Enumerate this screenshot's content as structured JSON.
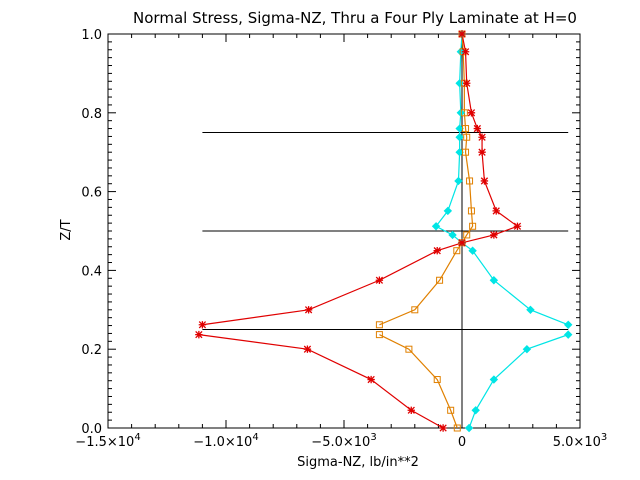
{
  "chart_data": {
    "type": "line",
    "title": "Normal Stress, Sigma-NZ, Thru a Four Ply Laminate at H=0",
    "xlabel": "Sigma-NZ,  lb/in**2",
    "ylabel": "Z/T",
    "xlim": [
      -15000,
      5000
    ],
    "ylim": [
      0.0,
      1.0
    ],
    "x_ticks": [
      {
        "value": -15000,
        "mantissa": "−1.5×10",
        "exp": "4"
      },
      {
        "value": -10000,
        "mantissa": "−1.0×10",
        "exp": "4"
      },
      {
        "value": -5000,
        "mantissa": "−5.0×10",
        "exp": "3"
      },
      {
        "value": 0,
        "mantissa": "0",
        "exp": ""
      },
      {
        "value": 5000,
        "mantissa": "5.0×10",
        "exp": "3"
      }
    ],
    "y_ticks": [
      "0.0",
      "0.2",
      "0.4",
      "0.6",
      "0.8",
      "1.0"
    ],
    "ply_interfaces": [
      0.25,
      0.5,
      0.75
    ],
    "grid": false,
    "legend": "none",
    "series": [
      {
        "color": "#00e5e5",
        "marker": "diamond",
        "points": [
          [
            4500,
            0.237
          ],
          [
            2750,
            0.2
          ],
          [
            1350,
            0.123
          ],
          [
            580,
            0.045
          ],
          [
            300,
            0.0
          ],
          [
            4500,
            0.262
          ],
          [
            2900,
            0.3
          ],
          [
            1350,
            0.375
          ],
          [
            450,
            0.45
          ],
          [
            0,
            0.47
          ],
          [
            -400,
            0.49
          ],
          [
            -1100,
            0.512
          ],
          [
            -600,
            0.551
          ],
          [
            -150,
            0.627
          ],
          [
            -100,
            0.7
          ],
          [
            -100,
            0.738
          ],
          [
            -100,
            0.76
          ],
          [
            -50,
            0.8
          ],
          [
            -100,
            0.875
          ],
          [
            -50,
            0.955
          ],
          [
            0,
            1.0
          ]
        ]
      },
      {
        "color": "#e08000",
        "marker": "square",
        "points": [
          [
            -3500,
            0.237
          ],
          [
            -2250,
            0.2
          ],
          [
            -1050,
            0.123
          ],
          [
            -480,
            0.045
          ],
          [
            -200,
            0.0
          ],
          [
            -3500,
            0.262
          ],
          [
            -2000,
            0.3
          ],
          [
            -950,
            0.375
          ],
          [
            -220,
            0.45
          ],
          [
            0,
            0.47
          ],
          [
            200,
            0.49
          ],
          [
            450,
            0.512
          ],
          [
            400,
            0.551
          ],
          [
            320,
            0.627
          ],
          [
            150,
            0.7
          ],
          [
            200,
            0.738
          ],
          [
            150,
            0.76
          ],
          [
            100,
            0.8
          ],
          [
            100,
            0.875
          ],
          [
            50,
            0.955
          ],
          [
            0,
            1.0
          ]
        ]
      },
      {
        "color": "#e00000",
        "marker": "asterisk",
        "points": [
          [
            -11150,
            0.237
          ],
          [
            -6550,
            0.2
          ],
          [
            -3850,
            0.123
          ],
          [
            -2150,
            0.045
          ],
          [
            -800,
            0.0
          ],
          [
            -11000,
            0.262
          ],
          [
            -6500,
            0.3
          ],
          [
            -3500,
            0.375
          ],
          [
            -1050,
            0.45
          ],
          [
            0,
            0.47
          ],
          [
            1350,
            0.49
          ],
          [
            2350,
            0.512
          ],
          [
            1450,
            0.551
          ],
          [
            950,
            0.627
          ],
          [
            850,
            0.7
          ],
          [
            850,
            0.738
          ],
          [
            650,
            0.76
          ],
          [
            400,
            0.8
          ],
          [
            200,
            0.875
          ],
          [
            150,
            0.955
          ],
          [
            0,
            1.0
          ]
        ]
      }
    ]
  }
}
